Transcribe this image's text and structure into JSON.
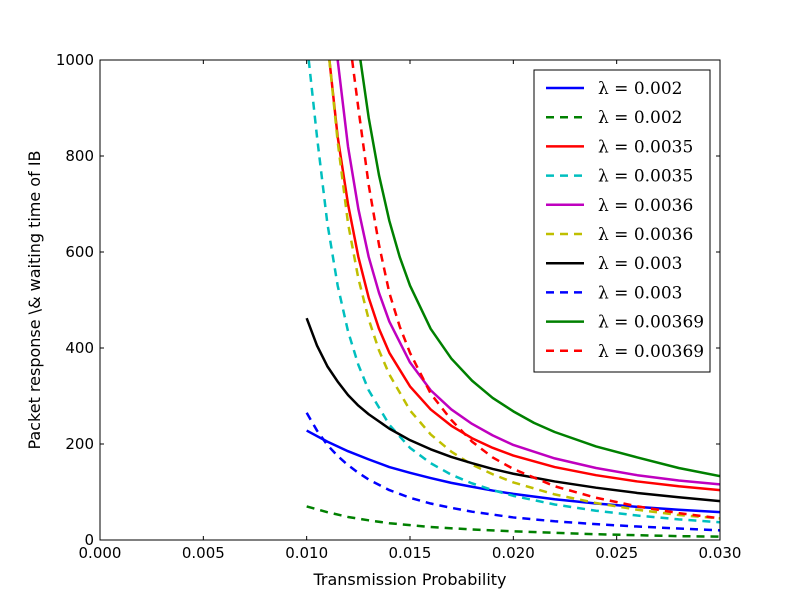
{
  "chart_data": {
    "type": "line",
    "title": "",
    "xlabel": "Transmission Probability",
    "ylabel": "Packet response \\& waiting time of IB",
    "xlim": [
      0.0,
      0.03
    ],
    "ylim": [
      0,
      1000
    ],
    "xticks": [
      0.0,
      0.005,
      0.01,
      0.015,
      0.02,
      0.025,
      0.03
    ],
    "xtick_labels": [
      "0.000",
      "0.005",
      "0.010",
      "0.015",
      "0.020",
      "0.025",
      "0.030"
    ],
    "yticks": [
      0,
      200,
      400,
      600,
      800,
      1000
    ],
    "ytick_labels": [
      "0",
      "200",
      "400",
      "600",
      "800",
      "1000"
    ],
    "grid": false,
    "legend_position": "top-right",
    "series": [
      {
        "name": "λ = 0.002",
        "color": "#0000ff",
        "style": "solid",
        "x": [
          0.01,
          0.011,
          0.012,
          0.013,
          0.014,
          0.015,
          0.016,
          0.017,
          0.018,
          0.019,
          0.02,
          0.022,
          0.024,
          0.026,
          0.028,
          0.03
        ],
        "y": [
          228,
          205,
          185,
          168,
          152,
          140,
          129,
          119,
          111,
          103,
          96,
          85,
          76,
          69,
          63,
          58
        ]
      },
      {
        "name": "λ = 0.002",
        "color": "#008000",
        "style": "dashed",
        "x": [
          0.01,
          0.011,
          0.012,
          0.013,
          0.014,
          0.015,
          0.016,
          0.018,
          0.02,
          0.022,
          0.024,
          0.026,
          0.028,
          0.03
        ],
        "y": [
          70,
          58,
          48,
          41,
          35,
          31,
          27,
          22,
          18,
          15,
          12,
          10,
          8,
          7
        ]
      },
      {
        "name": "λ = 0.0035",
        "color": "#ff0000",
        "style": "solid",
        "x": [
          0.0111,
          0.0115,
          0.012,
          0.0125,
          0.013,
          0.0135,
          0.014,
          0.015,
          0.016,
          0.017,
          0.018,
          0.019,
          0.02,
          0.022,
          0.024,
          0.026,
          0.028,
          0.03
        ],
        "y": [
          1000,
          840,
          700,
          590,
          505,
          440,
          390,
          320,
          272,
          238,
          212,
          192,
          176,
          152,
          135,
          122,
          112,
          104
        ]
      },
      {
        "name": "λ = 0.0035",
        "color": "#00bfbf",
        "style": "dashed",
        "x": [
          0.0101,
          0.0105,
          0.011,
          0.0115,
          0.012,
          0.0125,
          0.013,
          0.014,
          0.015,
          0.016,
          0.017,
          0.018,
          0.019,
          0.02,
          0.022,
          0.024,
          0.026,
          0.028,
          0.03
        ],
        "y": [
          1000,
          840,
          660,
          530,
          435,
          365,
          312,
          240,
          192,
          160,
          136,
          118,
          104,
          92,
          74,
          61,
          51,
          43,
          37
        ]
      },
      {
        "name": "λ = 0.0036",
        "color": "#bf00bf",
        "style": "solid",
        "x": [
          0.0115,
          0.012,
          0.0125,
          0.013,
          0.0135,
          0.014,
          0.015,
          0.016,
          0.017,
          0.018,
          0.019,
          0.02,
          0.022,
          0.024,
          0.026,
          0.028,
          0.03
        ],
        "y": [
          1000,
          820,
          690,
          590,
          515,
          455,
          370,
          312,
          272,
          242,
          218,
          198,
          170,
          150,
          135,
          124,
          116
        ]
      },
      {
        "name": "λ = 0.0036",
        "color": "#bfbf00",
        "style": "dashed",
        "x": [
          0.0111,
          0.0115,
          0.012,
          0.0125,
          0.013,
          0.0135,
          0.014,
          0.015,
          0.016,
          0.017,
          0.018,
          0.019,
          0.02,
          0.022,
          0.024,
          0.026,
          0.028,
          0.03
        ],
        "y": [
          1000,
          830,
          660,
          545,
          460,
          395,
          345,
          270,
          220,
          184,
          157,
          137,
          120,
          95,
          77,
          63,
          52,
          45
        ]
      },
      {
        "name": "λ = 0.003",
        "color": "#000000",
        "style": "solid",
        "x": [
          0.01,
          0.0105,
          0.011,
          0.0115,
          0.012,
          0.0125,
          0.013,
          0.014,
          0.015,
          0.016,
          0.017,
          0.018,
          0.019,
          0.02,
          0.022,
          0.024,
          0.026,
          0.028,
          0.03
        ],
        "y": [
          462,
          405,
          362,
          330,
          302,
          280,
          262,
          232,
          208,
          189,
          173,
          160,
          148,
          138,
          122,
          109,
          98,
          89,
          81
        ]
      },
      {
        "name": "λ = 0.003",
        "color": "#0000ff",
        "style": "dashed",
        "x": [
          0.01,
          0.0105,
          0.011,
          0.0115,
          0.012,
          0.0125,
          0.013,
          0.014,
          0.015,
          0.016,
          0.017,
          0.018,
          0.019,
          0.02,
          0.022,
          0.024,
          0.026,
          0.028,
          0.03
        ],
        "y": [
          265,
          228,
          198,
          175,
          156,
          140,
          126,
          104,
          88,
          76,
          67,
          59,
          53,
          47,
          39,
          33,
          28,
          24,
          20
        ]
      },
      {
        "name": "λ = 0.00369",
        "color": "#008000",
        "style": "solid",
        "x": [
          0.0126,
          0.013,
          0.0135,
          0.014,
          0.0145,
          0.015,
          0.016,
          0.017,
          0.018,
          0.019,
          0.02,
          0.021,
          0.022,
          0.024,
          0.026,
          0.028,
          0.03
        ],
        "y": [
          1000,
          880,
          760,
          665,
          590,
          530,
          440,
          378,
          332,
          296,
          268,
          244,
          225,
          195,
          172,
          150,
          133
        ]
      },
      {
        "name": "λ = 0.00369",
        "color": "#ff0000",
        "style": "dashed",
        "x": [
          0.0122,
          0.0125,
          0.013,
          0.0135,
          0.014,
          0.0145,
          0.015,
          0.016,
          0.017,
          0.018,
          0.019,
          0.02,
          0.022,
          0.024,
          0.026,
          0.028,
          0.03
        ],
        "y": [
          1000,
          900,
          740,
          615,
          515,
          445,
          390,
          305,
          250,
          205,
          172,
          148,
          112,
          88,
          70,
          56,
          45
        ]
      }
    ]
  }
}
